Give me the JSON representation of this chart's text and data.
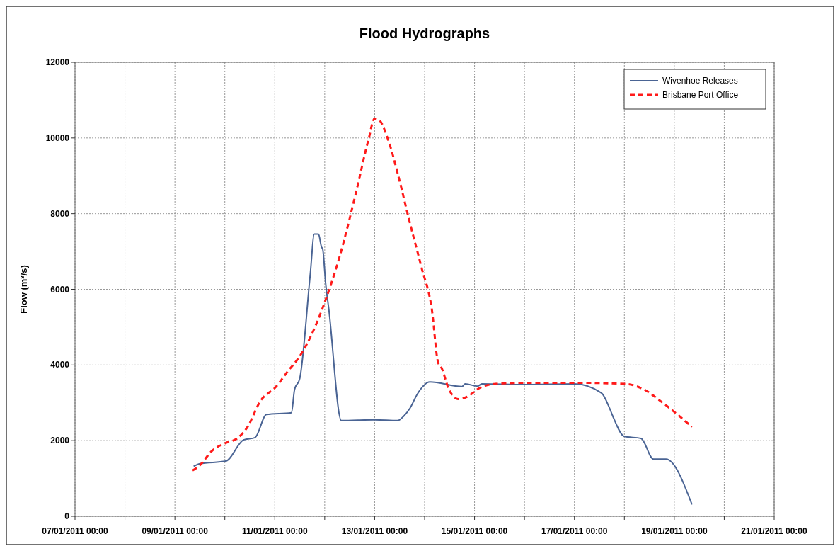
{
  "chart_data": {
    "type": "line",
    "title": "Flood Hydrographs",
    "ylabel": "Flow (m³/s)",
    "xlim": [
      "2011-01-07",
      "2011-01-21"
    ],
    "xticks": [
      {
        "value": "2011-01-07",
        "label": "07/01/2011 00:00"
      },
      {
        "value": "2011-01-08",
        "label": null
      },
      {
        "value": "2011-01-09",
        "label": "09/01/2011 00:00"
      },
      {
        "value": "2011-01-10",
        "label": null
      },
      {
        "value": "2011-01-11",
        "label": "11/01/2011 00:00"
      },
      {
        "value": "2011-01-12",
        "label": null
      },
      {
        "value": "2011-01-13",
        "label": "13/01/2011 00:00"
      },
      {
        "value": "2011-01-14",
        "label": null
      },
      {
        "value": "2011-01-15",
        "label": "15/01/2011 00:00"
      },
      {
        "value": "2011-01-16",
        "label": null
      },
      {
        "value": "2011-01-17",
        "label": "17/01/2011 00:00"
      },
      {
        "value": "2011-01-18",
        "label": null
      },
      {
        "value": "2011-01-19",
        "label": "19/01/2011 00:00"
      },
      {
        "value": "2011-01-20",
        "label": null
      },
      {
        "value": "2011-01-21",
        "label": "21/01/2011 00:00"
      }
    ],
    "ylim": [
      0,
      12000
    ],
    "yticks": [
      0,
      2000,
      4000,
      6000,
      8000,
      10000,
      12000
    ],
    "grid": true,
    "legend": "top right",
    "series": [
      {
        "name": "Wivenhoe Releases",
        "color": "#4a6494",
        "line_style": "solid",
        "x": [
          "2011-01-09T09:00",
          "2011-01-09T12:00",
          "2011-01-10T00:30",
          "2011-01-10T09:00",
          "2011-01-10T14:30",
          "2011-01-10T20:00",
          "2011-01-11T08:00",
          "2011-01-11T09:30",
          "2011-01-11T12:00",
          "2011-01-11T17:00",
          "2011-01-11T19:00",
          "2011-01-11T21:00",
          "2011-01-11T22:30",
          "2011-01-11T23:00",
          "2011-01-12T00:30",
          "2011-01-12T02:00",
          "2011-01-12T08:00",
          "2011-01-13T00:00",
          "2011-01-13T11:00",
          "2011-01-13T14:00",
          "2011-01-13T17:00",
          "2011-01-13T20:30",
          "2011-01-14T02:30",
          "2011-01-14T18:00",
          "2011-01-14T19:30",
          "2011-01-15T01:30",
          "2011-01-15T03:30",
          "2011-01-16T00:00",
          "2011-01-17T00:00",
          "2011-01-17T13:00",
          "2011-01-17T16:30",
          "2011-01-17T18:30",
          "2011-01-18T00:00",
          "2011-01-18T08:00",
          "2011-01-18T14:00",
          "2011-01-18T20:00",
          "2011-01-19T08:30"
        ],
        "values": [
          1320,
          1390,
          1460,
          2020,
          2080,
          2690,
          2740,
          3350,
          3640,
          6370,
          7460,
          7460,
          7110,
          7070,
          6130,
          5460,
          2530,
          2550,
          2530,
          2650,
          2860,
          3230,
          3550,
          3430,
          3500,
          3440,
          3500,
          3480,
          3500,
          3260,
          2910,
          2640,
          2110,
          2060,
          1510,
          1510,
          310
        ]
      },
      {
        "name": "Brisbane Port Office",
        "color": "#ff1a1a",
        "line_style": "dashed",
        "x": [
          "2011-01-09T08:30",
          "2011-01-09T12:00",
          "2011-01-09T18:00",
          "2011-01-10T00:30",
          "2011-01-10T06:00",
          "2011-01-10T11:00",
          "2011-01-10T17:00",
          "2011-01-11T00:30",
          "2011-01-11T06:30",
          "2011-01-11T12:00",
          "2011-01-11T18:30",
          "2011-01-12T01:00",
          "2011-01-12T07:30",
          "2011-01-12T15:00",
          "2011-01-12T21:00",
          "2011-01-13T00:00",
          "2011-01-13T02:00",
          "2011-01-13T06:30",
          "2011-01-13T11:30",
          "2011-01-13T16:30",
          "2011-01-13T22:30",
          "2011-01-14T03:30",
          "2011-01-14T06:30",
          "2011-01-14T08:00",
          "2011-01-14T11:30",
          "2011-01-14T16:00",
          "2011-01-14T20:30",
          "2011-01-15T02:00",
          "2011-01-15T10:00",
          "2011-01-16T01:00",
          "2011-01-17T00:00",
          "2011-01-18T00:30",
          "2011-01-18T09:30",
          "2011-01-18T17:30",
          "2011-01-19T00:00",
          "2011-01-19T08:30"
        ],
        "values": [
          1210,
          1350,
          1740,
          1940,
          2060,
          2370,
          3040,
          3420,
          3850,
          4230,
          4900,
          5810,
          6930,
          8550,
          9950,
          10510,
          10480,
          9950,
          8970,
          7850,
          6580,
          5460,
          4060,
          3940,
          3380,
          3100,
          3160,
          3380,
          3500,
          3530,
          3530,
          3500,
          3350,
          3040,
          2760,
          2360
        ]
      }
    ]
  }
}
